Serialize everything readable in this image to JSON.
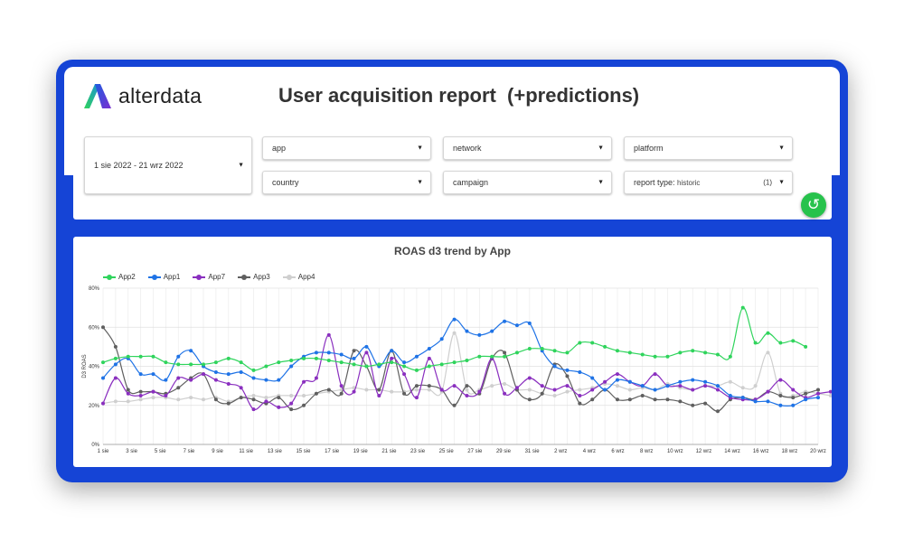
{
  "logo": {
    "text": "alterdata"
  },
  "title": "User acquisition report  (+predictions)",
  "filters": {
    "date_range": "1 sie 2022 - 21 wrz 2022",
    "app": "app",
    "network": "network",
    "platform": "platform",
    "country": "country",
    "campaign": "campaign",
    "report_type_label": "report type:",
    "report_type_value": "historic",
    "report_type_count": "(1)"
  },
  "icons": {
    "dropdown": "chevron-down-icon",
    "reset": "reset-icon"
  },
  "colors": {
    "frame": "#1544d6",
    "reset_button": "#27c24c",
    "App2": "#2fd45c",
    "App1": "#1f73e6",
    "App7": "#8a2fbf",
    "App3": "#5f5f5f",
    "App4": "#cfcfcf"
  },
  "chart_data": {
    "type": "line",
    "title": "ROAS d3 trend by App",
    "xlabel": "",
    "ylabel": "D3 ROAS",
    "ylim": [
      0,
      80
    ],
    "yticks": [
      "0%",
      "20%",
      "40%",
      "60%",
      "80%"
    ],
    "xticks": [
      "1 sie",
      "3 sie",
      "5 sie",
      "7 sie",
      "9 sie",
      "11 sie",
      "13 sie",
      "15 sie",
      "17 sie",
      "19 sie",
      "21 sie",
      "23 sie",
      "25 sie",
      "27 sie",
      "29 sie",
      "31 sie",
      "2 wrz",
      "4 wrz",
      "6 wrz",
      "8 wrz",
      "10 wrz",
      "12 wrz",
      "14 wrz",
      "16 wrz",
      "18 wrz",
      "20 wrz"
    ],
    "grid": true,
    "legend_position": "top-left",
    "series": [
      {
        "name": "App2",
        "values": [
          42,
          44,
          45,
          45,
          45,
          42,
          41,
          41,
          41,
          42,
          44,
          42,
          38,
          40,
          42,
          43,
          44,
          44,
          43,
          42,
          41,
          40,
          41,
          42,
          40,
          38,
          40,
          41,
          42,
          43,
          45,
          45,
          45,
          47,
          49,
          49,
          48,
          47,
          52,
          52,
          50,
          48,
          47,
          46,
          45,
          45,
          47,
          48,
          47,
          46,
          45,
          70,
          52,
          57,
          52,
          53,
          50
        ]
      },
      {
        "name": "App1",
        "values": [
          34,
          41,
          44,
          36,
          36,
          33,
          45,
          48,
          40,
          37,
          36,
          37,
          34,
          33,
          33,
          40,
          45,
          47,
          47,
          46,
          44,
          50,
          40,
          48,
          42,
          45,
          49,
          54,
          64,
          58,
          56,
          58,
          63,
          61,
          62,
          48,
          40,
          38,
          37,
          34,
          28,
          33,
          32,
          30,
          28,
          30,
          32,
          33,
          32,
          30,
          25,
          24,
          22,
          22,
          20,
          20,
          23,
          24
        ]
      },
      {
        "name": "App7",
        "values": [
          21,
          34,
          26,
          25,
          27,
          25,
          34,
          33,
          36,
          33,
          31,
          29,
          18,
          22,
          19,
          21,
          32,
          34,
          56,
          30,
          27,
          47,
          25,
          44,
          36,
          24,
          44,
          28,
          30,
          25,
          27,
          44,
          26,
          29,
          34,
          30,
          28,
          30,
          25,
          28,
          32,
          36,
          32,
          30,
          36,
          30,
          30,
          28,
          30,
          28,
          24,
          23,
          23,
          27,
          33,
          28,
          24,
          26,
          27
        ]
      },
      {
        "name": "App3",
        "values": [
          60,
          50,
          28,
          27,
          27,
          26,
          29,
          34,
          36,
          23,
          21,
          24,
          23,
          21,
          24,
          18,
          20,
          26,
          28,
          26,
          48,
          40,
          28,
          48,
          26,
          30,
          30,
          28,
          20,
          30,
          26,
          44,
          47,
          28,
          23,
          26,
          41,
          35,
          21,
          23,
          28,
          23,
          23,
          25,
          23,
          23,
          22,
          20,
          21,
          17,
          23,
          24,
          23,
          27,
          25,
          24,
          26,
          28
        ]
      },
      {
        "name": "App4",
        "values": [
          21,
          22,
          22,
          23,
          24,
          24,
          23,
          24,
          23,
          24,
          22,
          24,
          25,
          24,
          25,
          25,
          25,
          26,
          27,
          28,
          29,
          28,
          28,
          27,
          27,
          28,
          28,
          27,
          57,
          28,
          28,
          30,
          31,
          28,
          28,
          26,
          25,
          27,
          28,
          29,
          31,
          30,
          28,
          29,
          28,
          31,
          29,
          28,
          30,
          30,
          32,
          29,
          30,
          47,
          26,
          25,
          27,
          26,
          25
        ]
      }
    ]
  }
}
